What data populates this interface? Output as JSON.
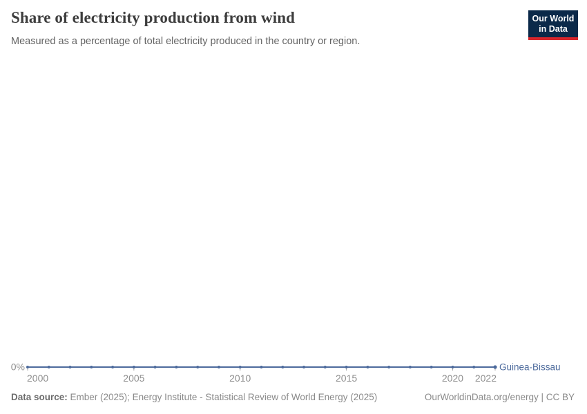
{
  "header": {
    "title": "Share of electricity production from wind",
    "subtitle": "Measured as a percentage of total electricity produced in the country or region.",
    "logo": {
      "line1": "Our World",
      "line2": "in Data",
      "bg_color": "#0b2949",
      "accent_color": "#d8262c"
    }
  },
  "chart_data": {
    "type": "line",
    "title": "Share of electricity production from wind",
    "xlabel": "",
    "ylabel": "",
    "x": [
      2000,
      2001,
      2002,
      2003,
      2004,
      2005,
      2006,
      2007,
      2008,
      2009,
      2010,
      2011,
      2012,
      2013,
      2014,
      2015,
      2016,
      2017,
      2018,
      2019,
      2020,
      2021,
      2022
    ],
    "series": [
      {
        "name": "Guinea-Bissau",
        "color": "#4c6a9c",
        "values": [
          0,
          0,
          0,
          0,
          0,
          0,
          0,
          0,
          0,
          0,
          0,
          0,
          0,
          0,
          0,
          0,
          0,
          0,
          0,
          0,
          0,
          0,
          0
        ]
      }
    ],
    "x_ticks": [
      2000,
      2005,
      2010,
      2015,
      2020,
      2022
    ],
    "y_ticks": [
      {
        "value": 0,
        "label": "0%"
      }
    ],
    "xlim": [
      2000,
      2022
    ],
    "ylim": [
      0,
      100
    ],
    "grid": false,
    "legend_position": "end-of-line",
    "axis_label_color": "#8e8e8e",
    "tick_color": "#a3a3a3"
  },
  "footer": {
    "source_label": "Data source:",
    "source_text": " Ember (2025); Energy Institute - Statistical Review of World Energy (2025)",
    "rights": "OurWorldinData.org/energy | CC BY"
  }
}
